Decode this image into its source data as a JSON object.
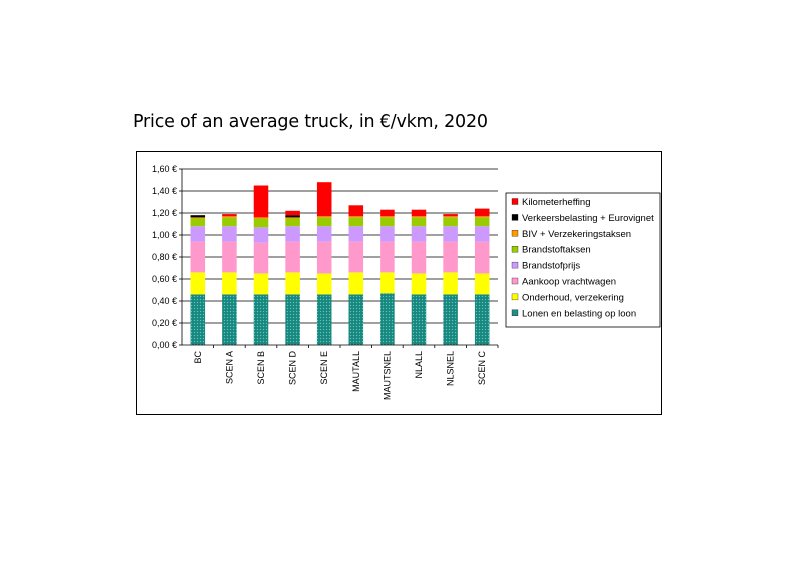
{
  "chart_data": {
    "type": "bar",
    "stacked": true,
    "title": "Price of an average truck, in €/vkm, 2020",
    "xlabel": "",
    "ylabel": "",
    "ylim": [
      0,
      1.6
    ],
    "yticks": [
      "0,00 €",
      "0,20 €",
      "0,40 €",
      "0,60 €",
      "0,80 €",
      "1,00 €",
      "1,20 €",
      "1,40 €",
      "1,60 €"
    ],
    "grid": true,
    "legend_position": "right",
    "categories": [
      "BC",
      "SCEN A",
      "SCEN B",
      "SCEN D",
      "SCEN E",
      "MAUTALL",
      "MAUTSNEL",
      "NLALL",
      "NLSNEL",
      "SCEN C"
    ],
    "series": [
      {
        "name": "Lonen en belasting op loon",
        "color": "#1f8f86",
        "pattern": "dots",
        "values": [
          0.46,
          0.46,
          0.46,
          0.46,
          0.46,
          0.46,
          0.47,
          0.46,
          0.46,
          0.46
        ]
      },
      {
        "name": "Onderhoud, verzekering",
        "color": "#ffff00",
        "values": [
          0.2,
          0.2,
          0.19,
          0.2,
          0.19,
          0.2,
          0.19,
          0.19,
          0.2,
          0.19
        ]
      },
      {
        "name": "Aankoop vrachtwagen",
        "color": "#ff99cc",
        "values": [
          0.28,
          0.28,
          0.28,
          0.28,
          0.29,
          0.28,
          0.28,
          0.29,
          0.28,
          0.29
        ]
      },
      {
        "name": "Brandstofprijs",
        "color": "#cc99ff",
        "values": [
          0.14,
          0.14,
          0.14,
          0.14,
          0.14,
          0.14,
          0.14,
          0.14,
          0.14,
          0.14
        ]
      },
      {
        "name": "Brandstoftaksen",
        "color": "#99cc00",
        "values": [
          0.07,
          0.08,
          0.08,
          0.07,
          0.08,
          0.08,
          0.08,
          0.08,
          0.08,
          0.08
        ]
      },
      {
        "name": "BIV + Verzekeringstaksen",
        "color": "#ff9900",
        "values": [
          0.01,
          0.01,
          0.01,
          0.01,
          0.01,
          0.01,
          0.01,
          0.01,
          0.01,
          0.01
        ]
      },
      {
        "name": "Verkeersbelasting + Eurovignet",
        "color": "#000000",
        "values": [
          0.02,
          0.0,
          0.0,
          0.02,
          0.0,
          0.0,
          0.0,
          0.0,
          0.0,
          0.0
        ]
      },
      {
        "name": "Kilometerheffing",
        "color": "#ff0000",
        "values": [
          0.0,
          0.02,
          0.29,
          0.04,
          0.31,
          0.1,
          0.06,
          0.06,
          0.02,
          0.07
        ]
      }
    ]
  }
}
